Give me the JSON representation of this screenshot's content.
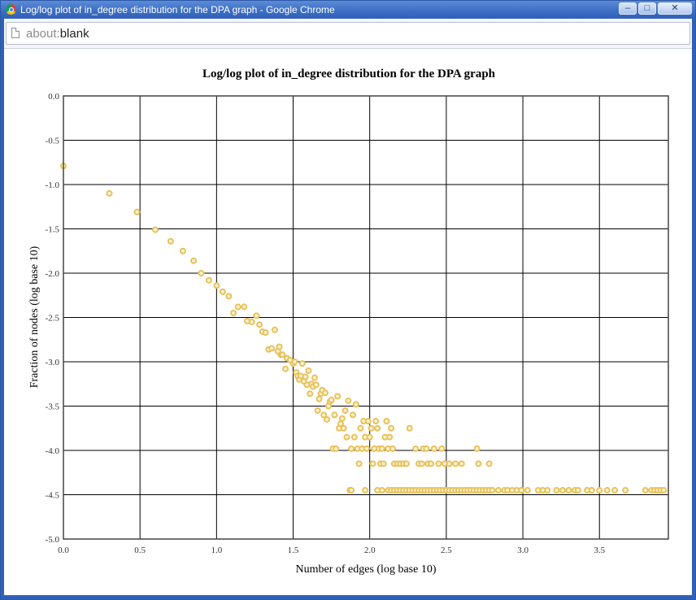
{
  "window": {
    "title": "Log/log plot of in_degree distribution for the DPA graph - Google Chrome",
    "minimize_glyph": "–",
    "maximize_glyph": "□",
    "close_glyph": "✕",
    "icon": "chrome-icon"
  },
  "address_bar": {
    "scheme": "about:",
    "path": "blank",
    "icon": "page-icon"
  },
  "colors": {
    "point_stroke": "#e8c15a",
    "point_fill": "#fbf3d4",
    "grid": "#000000"
  },
  "chart_data": {
    "type": "scatter",
    "title": "Log/log plot of in_degree distribution for the DPA graph",
    "xlabel": "Number of edges (log base 10)",
    "ylabel": "Fraction of nodes (log base 10)",
    "xlim": [
      0,
      3.95
    ],
    "ylim": [
      -5.0,
      0.0
    ],
    "xticks": [
      0.0,
      0.5,
      1.0,
      1.5,
      2.0,
      2.5,
      3.0,
      3.5
    ],
    "xtick_labels": [
      "0.0",
      "0.5",
      "1.0",
      "1.5",
      "2.0",
      "2.5",
      "3.0",
      "3.5"
    ],
    "yticks": [
      0.0,
      -0.5,
      -1.0,
      -1.5,
      -2.0,
      -2.5,
      -3.0,
      -3.5,
      -4.0,
      -4.5,
      -5.0
    ],
    "ytick_labels": [
      "0.0",
      "-0.5",
      "-1.0",
      "-1.5",
      "-2.0",
      "-2.5",
      "-3.0",
      "-3.5",
      "-4.0",
      "-4.5",
      "-5.0"
    ],
    "grid": true,
    "legend": "none",
    "series": [
      {
        "points": [
          [
            0.0,
            -0.79
          ],
          [
            0.3,
            -1.1
          ],
          [
            0.48,
            -1.31
          ],
          [
            0.6,
            -1.51
          ],
          [
            0.7,
            -1.64
          ],
          [
            0.78,
            -1.75
          ],
          [
            0.85,
            -1.86
          ],
          [
            0.9,
            -2.0
          ],
          [
            0.95,
            -2.08
          ],
          [
            1.0,
            -2.14
          ],
          [
            1.04,
            -2.21
          ],
          [
            1.08,
            -2.26
          ],
          [
            1.11,
            -2.45
          ],
          [
            1.14,
            -2.38
          ],
          [
            1.18,
            -2.38
          ],
          [
            1.2,
            -2.54
          ],
          [
            1.23,
            -2.55
          ],
          [
            1.26,
            -2.48
          ],
          [
            1.28,
            -2.58
          ],
          [
            1.3,
            -2.66
          ],
          [
            1.32,
            -2.67
          ],
          [
            1.34,
            -2.86
          ],
          [
            1.36,
            -2.85
          ],
          [
            1.38,
            -2.64
          ],
          [
            1.4,
            -2.88
          ],
          [
            1.41,
            -2.83
          ],
          [
            1.42,
            -2.92
          ],
          [
            1.43,
            -2.92
          ],
          [
            1.45,
            -3.08
          ],
          [
            1.46,
            -2.96
          ],
          [
            1.48,
            -2.98
          ],
          [
            1.5,
            -3.02
          ],
          [
            1.51,
            -3.0
          ],
          [
            1.52,
            -3.12
          ],
          [
            1.53,
            -3.16
          ],
          [
            1.54,
            -3.2
          ],
          [
            1.55,
            -3.16
          ],
          [
            1.56,
            -3.02
          ],
          [
            1.57,
            -3.22
          ],
          [
            1.58,
            -3.17
          ],
          [
            1.59,
            -3.26
          ],
          [
            1.6,
            -3.1
          ],
          [
            1.61,
            -3.36
          ],
          [
            1.62,
            -3.25
          ],
          [
            1.63,
            -3.28
          ],
          [
            1.64,
            -3.18
          ],
          [
            1.65,
            -3.26
          ],
          [
            1.66,
            -3.55
          ],
          [
            1.67,
            -3.42
          ],
          [
            1.68,
            -3.36
          ],
          [
            1.69,
            -3.32
          ],
          [
            1.7,
            -3.6
          ],
          [
            1.71,
            -3.35
          ],
          [
            1.72,
            -3.65
          ],
          [
            1.73,
            -3.5
          ],
          [
            1.74,
            -3.45
          ],
          [
            1.75,
            -3.43
          ],
          [
            1.76,
            -3.98
          ],
          [
            1.77,
            -3.6
          ],
          [
            1.78,
            -3.98
          ],
          [
            1.79,
            -3.39
          ],
          [
            1.8,
            -3.75
          ],
          [
            1.81,
            -3.7
          ],
          [
            1.82,
            -3.64
          ],
          [
            1.83,
            -3.75
          ],
          [
            1.84,
            -3.55
          ],
          [
            1.85,
            -3.85
          ],
          [
            1.86,
            -3.44
          ],
          [
            1.87,
            -4.45
          ],
          [
            1.88,
            -3.98
          ],
          [
            1.89,
            -3.6
          ],
          [
            1.9,
            -3.85
          ],
          [
            1.91,
            -3.48
          ],
          [
            1.92,
            -3.98
          ],
          [
            1.93,
            -4.15
          ],
          [
            1.94,
            -3.75
          ],
          [
            1.95,
            -3.98
          ],
          [
            1.96,
            -3.67
          ],
          [
            1.97,
            -3.85
          ],
          [
            1.98,
            -3.98
          ],
          [
            1.99,
            -3.67
          ],
          [
            2.0,
            -3.85
          ],
          [
            2.01,
            -3.75
          ],
          [
            2.02,
            -4.15
          ],
          [
            2.03,
            -3.98
          ],
          [
            2.04,
            -3.67
          ],
          [
            2.05,
            -3.75
          ],
          [
            2.06,
            -3.98
          ],
          [
            2.07,
            -4.15
          ],
          [
            2.08,
            -3.98
          ],
          [
            2.09,
            -4.15
          ],
          [
            2.1,
            -3.85
          ],
          [
            2.11,
            -3.67
          ],
          [
            2.12,
            -3.98
          ],
          [
            2.13,
            -3.85
          ],
          [
            2.14,
            -3.75
          ],
          [
            2.15,
            -3.98
          ],
          [
            2.16,
            -4.15
          ],
          [
            2.18,
            -4.15
          ],
          [
            2.2,
            -4.15
          ],
          [
            2.22,
            -4.15
          ],
          [
            2.24,
            -4.15
          ],
          [
            2.26,
            -3.75
          ],
          [
            2.3,
            -3.98
          ],
          [
            2.32,
            -4.15
          ],
          [
            2.34,
            -4.15
          ],
          [
            2.35,
            -3.98
          ],
          [
            2.37,
            -3.98
          ],
          [
            2.38,
            -4.15
          ],
          [
            2.4,
            -4.15
          ],
          [
            2.42,
            -3.98
          ],
          [
            2.45,
            -4.15
          ],
          [
            2.47,
            -3.98
          ],
          [
            2.49,
            -4.15
          ],
          [
            2.52,
            -4.15
          ],
          [
            2.56,
            -4.15
          ],
          [
            2.6,
            -4.15
          ],
          [
            2.7,
            -3.98
          ],
          [
            2.71,
            -4.15
          ],
          [
            2.78,
            -4.15
          ],
          [
            1.88,
            -4.45
          ],
          [
            1.97,
            -4.45
          ],
          [
            2.05,
            -4.45
          ],
          [
            2.08,
            -4.45
          ],
          [
            2.12,
            -4.45
          ],
          [
            2.14,
            -4.45
          ],
          [
            2.16,
            -4.45
          ],
          [
            2.18,
            -4.45
          ],
          [
            2.2,
            -4.45
          ],
          [
            2.22,
            -4.45
          ],
          [
            2.24,
            -4.45
          ],
          [
            2.26,
            -4.45
          ],
          [
            2.28,
            -4.45
          ],
          [
            2.3,
            -4.45
          ],
          [
            2.32,
            -4.45
          ],
          [
            2.34,
            -4.45
          ],
          [
            2.36,
            -4.45
          ],
          [
            2.38,
            -4.45
          ],
          [
            2.4,
            -4.45
          ],
          [
            2.42,
            -4.45
          ],
          [
            2.44,
            -4.45
          ],
          [
            2.46,
            -4.45
          ],
          [
            2.48,
            -4.45
          ],
          [
            2.5,
            -4.45
          ],
          [
            2.52,
            -4.45
          ],
          [
            2.54,
            -4.45
          ],
          [
            2.56,
            -4.45
          ],
          [
            2.58,
            -4.45
          ],
          [
            2.6,
            -4.45
          ],
          [
            2.62,
            -4.45
          ],
          [
            2.64,
            -4.45
          ],
          [
            2.66,
            -4.45
          ],
          [
            2.68,
            -4.45
          ],
          [
            2.7,
            -4.45
          ],
          [
            2.72,
            -4.45
          ],
          [
            2.74,
            -4.45
          ],
          [
            2.76,
            -4.45
          ],
          [
            2.78,
            -4.45
          ],
          [
            2.8,
            -4.45
          ],
          [
            2.84,
            -4.45
          ],
          [
            2.88,
            -4.45
          ],
          [
            2.9,
            -4.45
          ],
          [
            2.93,
            -4.45
          ],
          [
            2.96,
            -4.45
          ],
          [
            2.99,
            -4.45
          ],
          [
            3.03,
            -4.45
          ],
          [
            3.1,
            -4.45
          ],
          [
            3.13,
            -4.45
          ],
          [
            3.16,
            -4.45
          ],
          [
            3.22,
            -4.45
          ],
          [
            3.26,
            -4.45
          ],
          [
            3.3,
            -4.45
          ],
          [
            3.34,
            -4.45
          ],
          [
            3.36,
            -4.45
          ],
          [
            3.42,
            -4.45
          ],
          [
            3.45,
            -4.45
          ],
          [
            3.5,
            -4.45
          ],
          [
            3.55,
            -4.45
          ],
          [
            3.6,
            -4.45
          ],
          [
            3.67,
            -4.45
          ],
          [
            3.8,
            -4.45
          ],
          [
            3.84,
            -4.45
          ],
          [
            3.86,
            -4.45
          ],
          [
            3.88,
            -4.45
          ],
          [
            3.9,
            -4.45
          ],
          [
            3.92,
            -4.45
          ]
        ]
      }
    ]
  }
}
